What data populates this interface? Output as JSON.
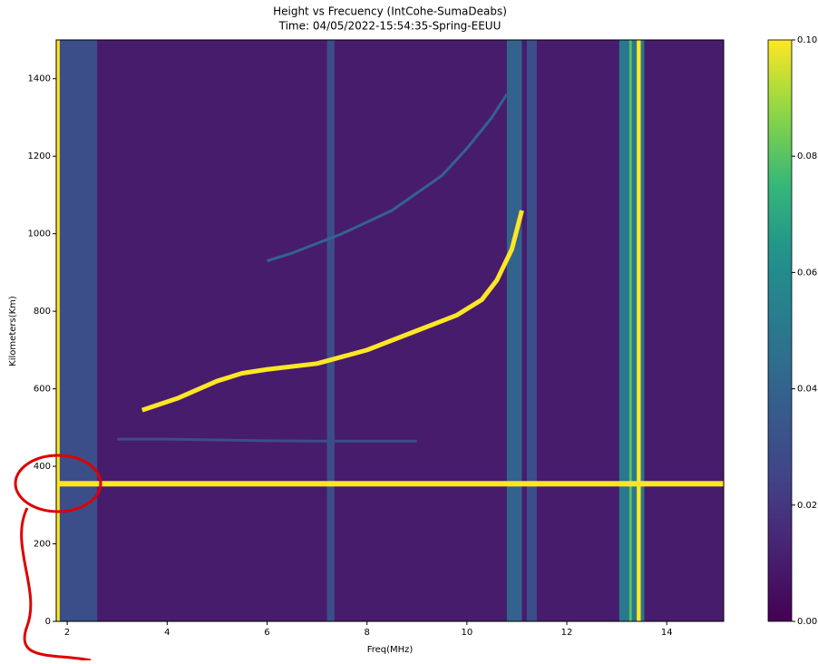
{
  "chart_data": {
    "type": "heatmap",
    "title": "Height vs Frecuency (IntCohe-SumaDeabs)",
    "subtitle": "Time: 04/05/2022-15:54:35-Spring-EEUU",
    "x_label": "Freq(MHz)",
    "y_label": "Kilometers(Km)",
    "xlim": [
      1.78,
      15.14
    ],
    "ylim": [
      0,
      1500
    ],
    "xticks": [
      2,
      4,
      6,
      8,
      10,
      12,
      14
    ],
    "yticks": [
      0,
      200,
      400,
      600,
      800,
      1000,
      1200,
      1400
    ],
    "colormap": "viridis",
    "background": 0.01,
    "clim": [
      0,
      0.1
    ],
    "cticks": [
      {
        "value": 0,
        "label": "0.00"
      },
      {
        "value": 0.02,
        "label": "0.02"
      },
      {
        "value": 0.04,
        "label": "0.04"
      },
      {
        "value": 0.06,
        "label": "0.06"
      },
      {
        "value": 0.08,
        "label": "0.08"
      },
      {
        "value": 0.1,
        "label": "0.10"
      }
    ],
    "bands": [
      {
        "x": [
          1.85,
          2.6
        ],
        "value": 0.03
      },
      {
        "x": [
          7.2,
          7.35
        ],
        "value": 0.03
      },
      {
        "x": [
          10.8,
          11.1
        ],
        "value": 0.04
      },
      {
        "x": [
          11.2,
          11.4
        ],
        "value": 0.03
      },
      {
        "x": [
          13.05,
          13.55
        ],
        "value": 0.05
      },
      {
        "x": [
          13.25,
          13.3
        ],
        "value": 0.08
      },
      {
        "x": [
          1.78,
          1.85
        ],
        "value": 0.1
      },
      {
        "x": [
          13.4,
          13.48
        ],
        "value": 0.1
      }
    ],
    "hlines": [
      {
        "y": 355,
        "value": 0.1
      }
    ],
    "traces": [
      {
        "x": [
          3,
          4,
          5,
          6,
          7,
          8,
          9
        ],
        "y": [
          470,
          470,
          468,
          466,
          465,
          465,
          465
        ],
        "value": 0.03
      },
      {
        "x": [
          6,
          6.5,
          7.5,
          8.5,
          9.5,
          10,
          10.5,
          10.8
        ],
        "y": [
          930,
          950,
          1000,
          1060,
          1150,
          1220,
          1300,
          1360
        ],
        "value": 0.04
      },
      {
        "x": [
          3.5,
          4.2,
          5,
          5.5,
          6,
          7,
          8,
          9,
          9.8,
          10.3,
          10.6,
          10.9,
          11.1
        ],
        "y": [
          545,
          575,
          620,
          640,
          650,
          665,
          700,
          750,
          790,
          830,
          880,
          960,
          1060
        ],
        "value": 0.1
      }
    ]
  }
}
